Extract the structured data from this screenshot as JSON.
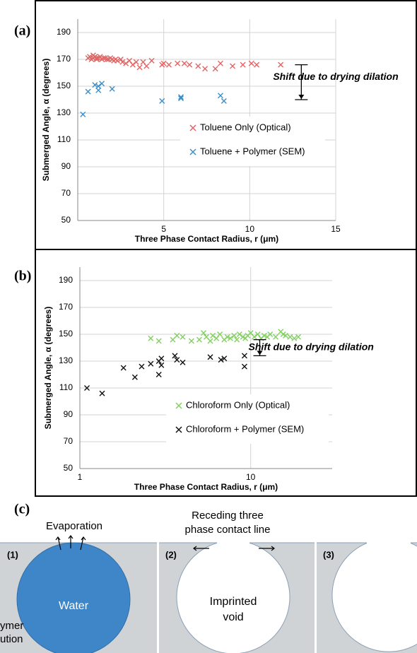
{
  "chart_data": [
    {
      "type": "scatter",
      "panel_label": "(a)",
      "xlabel": "Three Phase Contact Radius, r (μm)",
      "ylabel": "Submerged Angle, α (degrees)",
      "xlim": [
        0,
        15
      ],
      "ylim": [
        50,
        200
      ],
      "xticks": [
        5,
        10,
        15
      ],
      "yticks": [
        50,
        70,
        90,
        110,
        130,
        150,
        170,
        190
      ],
      "xscale": "linear",
      "grid": true,
      "legend": "right",
      "series": [
        {
          "name": "Toluene Only (Optical)",
          "color": "#e06666",
          "x": [
            0.6,
            0.7,
            0.8,
            0.9,
            0.9,
            1.0,
            1.1,
            1.1,
            1.2,
            1.3,
            1.4,
            1.5,
            1.6,
            1.7,
            1.8,
            1.9,
            2.0,
            2.1,
            2.2,
            2.3,
            2.5,
            2.6,
            2.8,
            3.0,
            3.2,
            3.4,
            3.6,
            3.8,
            4.0,
            4.3,
            4.9,
            5.0,
            5.3,
            5.8,
            6.2,
            6.5,
            7.0,
            7.4,
            8.0,
            8.3,
            9.0,
            9.6,
            10.1,
            10.4,
            11.8
          ],
          "values": [
            171,
            172,
            170,
            171,
            173,
            172,
            170,
            171,
            171,
            172,
            170,
            171,
            171,
            170,
            170,
            171,
            170,
            169,
            170,
            169,
            170,
            168,
            167,
            169,
            166,
            168,
            164,
            168,
            165,
            169,
            166,
            167,
            166,
            167,
            167,
            166,
            165,
            163,
            163,
            167,
            165,
            166,
            167,
            166,
            166
          ]
        },
        {
          "name": "Toluene + Polymer (SEM)",
          "color": "#3d8fc6",
          "x": [
            0.3,
            0.6,
            1.0,
            1.2,
            1.2,
            1.4,
            2.0,
            4.9,
            6.0,
            6.0,
            8.3,
            8.5
          ],
          "values": [
            129,
            146,
            151,
            147,
            150,
            152,
            148,
            139,
            141,
            142,
            143,
            139
          ]
        }
      ],
      "annotation": {
        "text": "Shift due to drying dilation",
        "x": 13,
        "y_range": [
          166,
          140
        ]
      }
    },
    {
      "type": "scatter",
      "panel_label": "(b)",
      "xlabel": "Three Phase Contact Radius, r (μm)",
      "ylabel": "Submerged Angle, α (degrees)",
      "xlim": [
        1,
        30
      ],
      "ylim": [
        50,
        200
      ],
      "xticks": [
        1,
        10
      ],
      "yticks": [
        50,
        70,
        90,
        110,
        130,
        150,
        170,
        190
      ],
      "xscale": "log",
      "grid": true,
      "legend": "right",
      "series": [
        {
          "name": "Chloroform Only (Optical)",
          "color": "#7fd35b",
          "x": [
            2.6,
            2.9,
            3.5,
            3.7,
            4.0,
            4.5,
            5.0,
            5.3,
            5.5,
            5.8,
            6.0,
            6.3,
            6.6,
            7.0,
            7.3,
            7.6,
            8.0,
            8.3,
            8.6,
            9.0,
            9.3,
            9.6,
            10,
            10.5,
            11,
            11.5,
            12,
            12.5,
            13,
            14,
            15,
            15.5,
            16,
            17,
            18,
            19
          ],
          "values": [
            147,
            145,
            146,
            149,
            148,
            145,
            146,
            151,
            148,
            145,
            149,
            147,
            150,
            146,
            148,
            147,
            149,
            146,
            150,
            148,
            147,
            149,
            151,
            148,
            150,
            147,
            149,
            148,
            150,
            148,
            152,
            150,
            149,
            148,
            147,
            148
          ]
        },
        {
          "name": "Chloroform + Polymer (SEM)",
          "color": "#111111",
          "x": [
            1.1,
            1.35,
            1.8,
            2.1,
            2.3,
            2.6,
            2.9,
            2.9,
            3.0,
            3.0,
            3.6,
            3.7,
            4.0,
            5.8,
            6.7,
            7.0,
            9.2,
            9.2
          ],
          "values": [
            110,
            106,
            125,
            118,
            126,
            128,
            130,
            120,
            127,
            132,
            134,
            131,
            129,
            133,
            131,
            132,
            134,
            126
          ]
        }
      ],
      "annotation": {
        "text": "Shift due to drying dilation",
        "x": 11.3,
        "y_range": [
          146,
          134
        ]
      }
    }
  ],
  "diagram": {
    "panel_label": "(c)",
    "evaporation": "Evaporation",
    "receding": [
      "Receding three",
      "phase contact line"
    ],
    "steps": [
      "(1)",
      "(2)",
      "(3)"
    ],
    "water": "Water",
    "void": [
      "Imprinted",
      "void"
    ],
    "solution": [
      "ymer",
      "ution"
    ]
  }
}
